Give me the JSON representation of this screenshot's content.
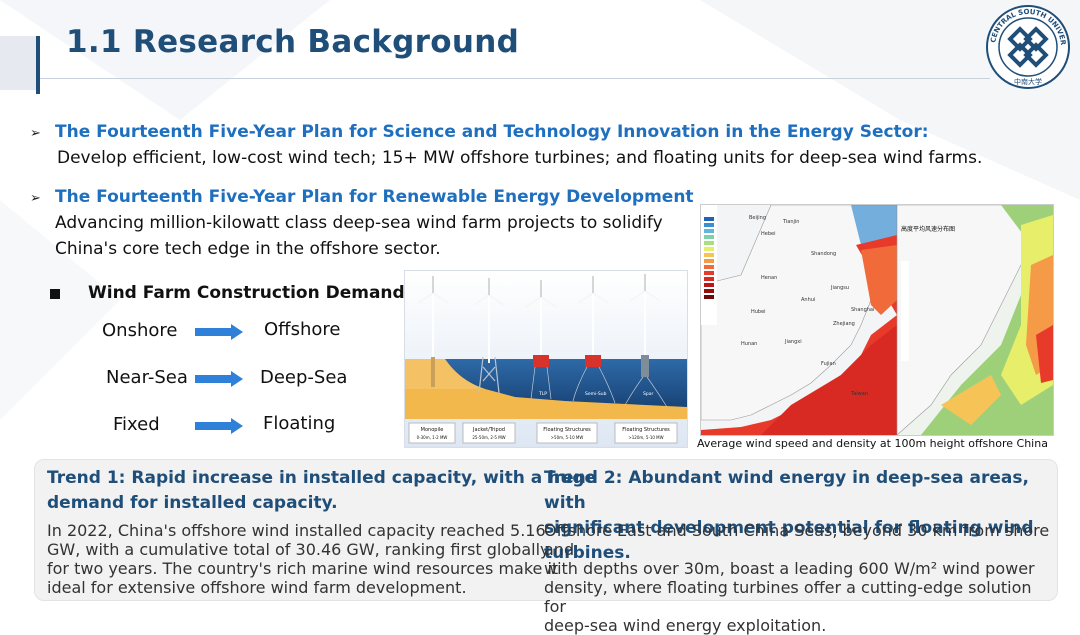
{
  "header": {
    "title": "1.1  Research Background",
    "logo_text": "CENTRAL SOUTH UNIVERSITY",
    "logo_cn": "中南大学"
  },
  "plans": [
    {
      "title": "The Fourteenth Five-Year Plan for Science and Technology Innovation in the Energy Sector:",
      "text": "Develop efficient, low-cost wind tech; 15+ MW offshore turbines; and floating units for deep-sea wind farms."
    },
    {
      "title": "The Fourteenth Five-Year Plan for Renewable Energy Development",
      "text_line1": "Advancing million-kilowatt class deep-sea wind farm projects to solidify",
      "text_line2": "China's core tech edge in the offshore sector."
    }
  ],
  "demand": {
    "title": "Wind Farm Construction Demand",
    "rows": [
      {
        "from": "Onshore",
        "to": "Offshore"
      },
      {
        "from": "Near-Sea",
        "to": "Deep-Sea"
      },
      {
        "from": "Fixed",
        "to": "Floating"
      }
    ]
  },
  "turbines": {
    "labels": [
      {
        "name": "Monopile",
        "range": "0-30m, 1-2 MW"
      },
      {
        "name": "Jacket/Tripod",
        "range": "25-50m, 2-5 MW"
      },
      {
        "name": "Floating Structures",
        "range": ">50m, 5-10 MW"
      },
      {
        "name": "Floating Structures",
        "range": ">120m, 5-10 MW"
      }
    ],
    "tags": [
      "TLP",
      "Semi-Sub",
      "Spar"
    ]
  },
  "map": {
    "caption": "Average wind speed and density at 100m height offshore China",
    "legend_title_cn": "高度平均风速分布图",
    "places": [
      "Hebei",
      "Beijing",
      "Tianjin",
      "Shandong",
      "Henan",
      "Jiangsu",
      "Anhui",
      "Hubei",
      "Zhejiang",
      "Shanghai",
      "Jiangxi",
      "Fujian",
      "Hunan",
      "Taiwan"
    ]
  },
  "trends": [
    {
      "title_line1": "Trend 1: Rapid increase in installed capacity, with a huge",
      "title_line2": "demand for installed capacity.",
      "body": [
        "In 2022, China's offshore wind installed capacity reached 5.16",
        "GW, with a cumulative total of 30.46 GW, ranking first globally",
        "for two years. The country's rich marine wind resources make it",
        "ideal for extensive offshore wind farm development."
      ]
    },
    {
      "title_line1": "Trend 2: Abundant wind energy in deep-sea areas, with",
      "title_line2": "significant development potential for floating wind turbines.",
      "body": [
        "Offshore East and South China Seas, beyond 30 km from shore and",
        "with depths over 30m, boast a leading 600 W/m² wind power",
        "density, where floating turbines offer a cutting-edge solution for",
        "deep-sea wind energy exploitation."
      ]
    }
  ],
  "colors": {
    "title": "#1f4e79",
    "plan": "#1f6fbf",
    "arrow": "#2f80d8",
    "sea": "#1e4f8a",
    "sand": "#f2b84b"
  }
}
